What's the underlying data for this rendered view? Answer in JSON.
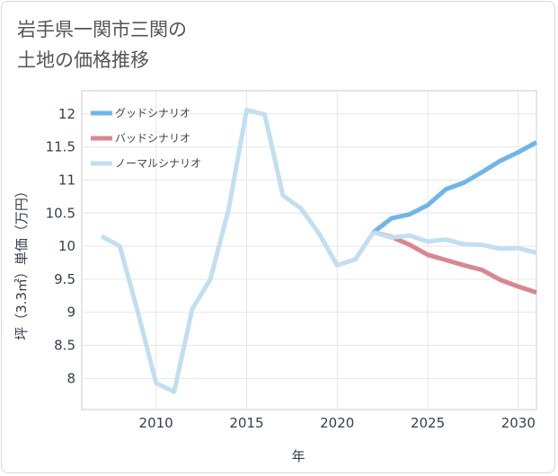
{
  "chart_data": {
    "type": "line",
    "title_lines": [
      "岩手県一関市三関の",
      "土地の価格推移"
    ],
    "xlabel": "年",
    "ylabel": "坪（3.3㎡）単価（万円）",
    "xlim": [
      2005.9,
      2031
    ],
    "ylim": [
      7.53,
      12.35
    ],
    "x_ticks": [
      "2010",
      "2015",
      "2020",
      "2025",
      "2030"
    ],
    "y_ticks": [
      "8",
      "8.5",
      "9",
      "9.5",
      "10",
      "10.5",
      "11",
      "11.5",
      "12"
    ],
    "history": {
      "x": [
        2007,
        2008,
        2009,
        2010,
        2011,
        2012,
        2013,
        2014,
        2015,
        2016,
        2017,
        2018,
        2019,
        2020,
        2021,
        2022
      ],
      "values": [
        10.15,
        10.0,
        9.0,
        7.93,
        7.8,
        9.05,
        9.5,
        10.55,
        12.06,
        11.99,
        10.77,
        10.57,
        10.19,
        9.71,
        9.8,
        10.21
      ]
    },
    "series": [
      {
        "name": "グッドシナリオ",
        "color": "#6db6ec",
        "x": [
          2022,
          2023,
          2024,
          2025,
          2026,
          2027,
          2028,
          2029,
          2030,
          2031
        ],
        "values": [
          10.21,
          10.42,
          10.48,
          10.62,
          10.86,
          10.96,
          11.12,
          11.29,
          11.42,
          11.57
        ]
      },
      {
        "name": "バッドシナリオ",
        "color": "#d9868f",
        "x": [
          2022,
          2023,
          2024,
          2025,
          2026,
          2027,
          2028,
          2029,
          2030,
          2031
        ],
        "values": [
          10.21,
          10.14,
          10.02,
          9.87,
          9.79,
          9.71,
          9.64,
          9.49,
          9.39,
          9.3
        ]
      },
      {
        "name": "ノーマルシナリオ",
        "color": "#c1dff0",
        "x": [
          2022,
          2023,
          2024,
          2025,
          2026,
          2027,
          2028,
          2029,
          2030,
          2031
        ],
        "values": [
          10.21,
          10.13,
          10.16,
          10.07,
          10.1,
          10.03,
          10.02,
          9.96,
          9.97,
          9.9
        ]
      }
    ]
  }
}
